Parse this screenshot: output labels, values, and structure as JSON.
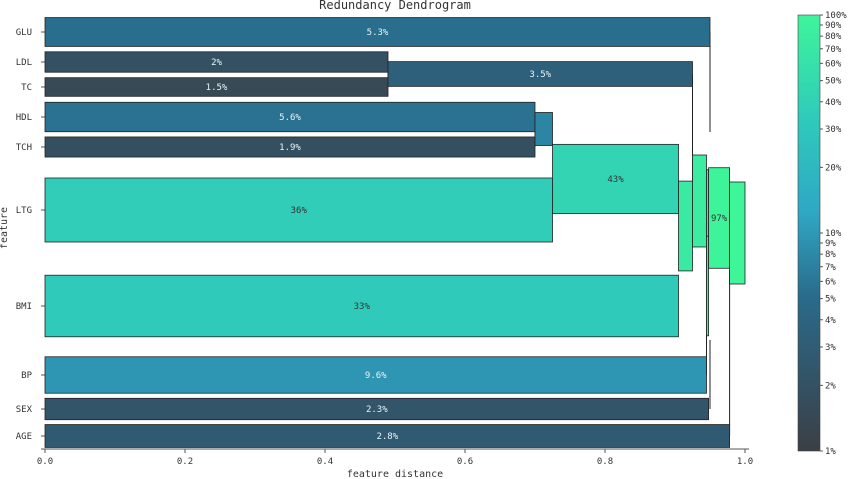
{
  "chart_data": {
    "type": "dendrogram",
    "title": "Redundancy Dendrogram",
    "xlabel": "feature distance",
    "ylabel": "feature",
    "xlim": [
      0,
      1
    ],
    "xticks": [
      "0.0",
      "0.2",
      "0.4",
      "0.6",
      "0.8",
      "1.0"
    ],
    "features": [
      "GLU",
      "LDL",
      "TC",
      "HDL",
      "TCH",
      "LTG",
      "BMI",
      "BP",
      "SEX",
      "AGE"
    ],
    "leaves": [
      {
        "feature": "GLU",
        "importance_label": "5.3%",
        "importance": 0.053,
        "distance": 0.95
      },
      {
        "feature": "LDL",
        "importance_label": "2%",
        "importance": 0.02,
        "distance": 0.49
      },
      {
        "feature": "TC",
        "importance_label": "1.5%",
        "importance": 0.015,
        "distance": 0.49
      },
      {
        "feature": "HDL",
        "importance_label": "5.6%",
        "importance": 0.056,
        "distance": 0.7
      },
      {
        "feature": "TCH",
        "importance_label": "1.9%",
        "importance": 0.019,
        "distance": 0.7
      },
      {
        "feature": "LTG",
        "importance_label": "36%",
        "importance": 0.36,
        "distance": 0.725
      },
      {
        "feature": "BMI",
        "importance_label": "33%",
        "importance": 0.33,
        "distance": 0.905
      },
      {
        "feature": "BP",
        "importance_label": "9.6%",
        "importance": 0.096,
        "distance": 0.945
      },
      {
        "feature": "SEX",
        "importance_label": "2.3%",
        "importance": 0.023,
        "distance": 0.948
      },
      {
        "feature": "AGE",
        "importance_label": "2.8%",
        "importance": 0.028,
        "distance": 0.978
      }
    ],
    "clusters": [
      {
        "members": [
          "LDL",
          "TC"
        ],
        "importance_label": "3.5%",
        "importance": 0.035,
        "distance": 0.925
      },
      {
        "members": [
          "HDL",
          "TCH"
        ],
        "importance": 0.075,
        "distance": 0.725
      },
      {
        "members": [
          "HDL",
          "TCH",
          "LTG"
        ],
        "importance_label": "43%",
        "importance": 0.43,
        "distance": 0.905
      },
      {
        "members": [
          "HDL",
          "TCH",
          "LTG",
          "BMI"
        ],
        "importance": 0.76,
        "distance": 0.925
      },
      {
        "members": [
          "LDL",
          "TC",
          "HDL",
          "TCH",
          "LTG",
          "BMI"
        ],
        "importance": 0.8,
        "distance": 0.945
      },
      {
        "members": [
          "GLU",
          "LDL",
          "TC",
          "HDL",
          "TCH",
          "LTG",
          "BMI"
        ],
        "importance": 0.85,
        "distance": 0.948
      },
      {
        "members": [
          "GLU",
          "LDL",
          "TC",
          "HDL",
          "TCH",
          "LTG",
          "BMI",
          "BP"
        ],
        "importance": 0.95,
        "distance": 0.948
      },
      {
        "members": [
          "GLU",
          "LDL",
          "TC",
          "HDL",
          "TCH",
          "LTG",
          "BMI",
          "BP",
          "SEX"
        ],
        "importance_label": "97%",
        "importance": 0.97,
        "distance": 0.978
      },
      {
        "members": [
          "GLU",
          "LDL",
          "TC",
          "HDL",
          "TCH",
          "LTG",
          "BMI",
          "BP",
          "SEX",
          "AGE"
        ],
        "importance": 1.0,
        "distance": 1.0
      }
    ],
    "colorbar": {
      "scale": "log",
      "range": [
        "1%",
        "100%"
      ],
      "tick_labels": [
        "1%",
        "2%",
        "3%",
        "4%",
        "5%",
        "6%",
        "7%",
        "8%",
        "9%",
        "10%",
        "20%",
        "30%",
        "40%",
        "50%",
        "60%",
        "70%",
        "80%",
        "90%",
        "100%"
      ],
      "colors": [
        "#3b3f45",
        "#2a6a8a",
        "#2fb8cc",
        "#3de89c"
      ]
    },
    "grid": false,
    "legend": "colorbar-right"
  }
}
